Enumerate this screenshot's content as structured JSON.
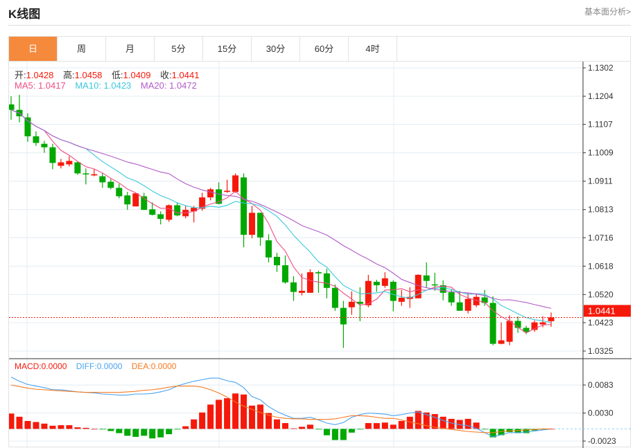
{
  "header": {
    "title": "K线图",
    "link": "基本面分析>"
  },
  "tabs": [
    "日",
    "周",
    "月",
    "5分",
    "15分",
    "30分",
    "60分",
    "4时"
  ],
  "active_tab": 0,
  "ohlc_legend": {
    "open_label": "开:",
    "open": "1.0428",
    "high_label": "高:",
    "high": "1.0458",
    "low_label": "低:",
    "low": "1.0409",
    "close_label": "收:",
    "close": "1.0441"
  },
  "ma_legend": {
    "ma5": "MA5: 1.0417",
    "ma10": "MA10: 1.0423",
    "ma20": "MA20: 1.0472"
  },
  "macd_legend": {
    "macd": "MACD:0.0000",
    "diff": "DIFF:0.0000",
    "dea": "DEA:0.0000"
  },
  "current_price": "1.0441",
  "colors": {
    "up": "#f5190b",
    "down": "#00a800",
    "ma5": "#ee4c84",
    "ma10": "#3cc8dc",
    "ma20": "#b15bc8",
    "diff": "#4aa3f0",
    "dea": "#f57a22",
    "accent": "#f58a3d"
  },
  "chart_data": {
    "type": "candlestick",
    "price_axis": {
      "ticks": [
        "1.1302",
        "1.1204",
        "1.1107",
        "1.1009",
        "1.0911",
        "1.0813",
        "1.0716",
        "1.0618",
        "1.0520",
        "1.0423",
        "1.0325"
      ],
      "range": [
        1.0325,
        1.1302
      ]
    },
    "macd_axis": {
      "ticks": [
        "0.0083",
        "0.0030",
        "-0.0023"
      ],
      "range": [
        -0.0023,
        0.0083
      ]
    },
    "candles": [
      [
        1.1176,
        1.1204,
        1.1123,
        1.1157
      ],
      [
        1.1157,
        1.1209,
        1.1114,
        1.1135
      ],
      [
        1.1131,
        1.1145,
        1.1047,
        1.1066
      ],
      [
        1.1066,
        1.1083,
        1.1033,
        1.1043
      ],
      [
        1.104,
        1.105,
        1.1009,
        1.1028
      ],
      [
        1.1028,
        1.104,
        1.0952,
        1.0974
      ],
      [
        1.0964,
        1.0988,
        1.0955,
        1.0976
      ],
      [
        1.0969,
        1.0997,
        1.0962,
        1.0981
      ],
      [
        1.0976,
        1.0978,
        1.0933,
        1.0938
      ],
      [
        1.0938,
        1.0955,
        1.09,
        1.0936
      ],
      [
        1.0931,
        1.0952,
        1.0928,
        1.0935
      ],
      [
        1.0928,
        1.094,
        1.0888,
        1.0907
      ],
      [
        1.0909,
        1.0919,
        1.0883,
        1.0888
      ],
      [
        1.0888,
        1.0902,
        1.0852,
        1.0859
      ],
      [
        1.0862,
        1.0874,
        1.0812,
        1.0831
      ],
      [
        1.0824,
        1.0871,
        1.0824,
        1.0869
      ],
      [
        1.0859,
        1.0871,
        1.0812,
        1.0812
      ],
      [
        1.0814,
        1.0838,
        1.0793,
        1.0795
      ],
      [
        1.0797,
        1.0807,
        1.0762,
        1.0781
      ],
      [
        1.0778,
        1.0831,
        1.0771,
        1.0828
      ],
      [
        1.0828,
        1.0838,
        1.079,
        1.0793
      ],
      [
        1.079,
        1.0826,
        1.0783,
        1.0812
      ],
      [
        1.0807,
        1.0826,
        1.0769,
        1.0819
      ],
      [
        1.0816,
        1.0871,
        1.0809,
        1.0855
      ],
      [
        1.0855,
        1.0888,
        1.0845,
        1.0883
      ],
      [
        1.0883,
        1.0907,
        1.0831,
        1.0833
      ],
      [
        1.0874,
        1.0916,
        1.0871,
        1.0878
      ],
      [
        1.0874,
        1.0938,
        1.0871,
        1.0931
      ],
      [
        1.0924,
        1.0938,
        1.0683,
        1.0726
      ],
      [
        1.0726,
        1.0826,
        1.0714,
        1.0802
      ],
      [
        1.0802,
        1.0802,
        1.0688,
        1.0717
      ],
      [
        1.0707,
        1.0728,
        1.0631,
        1.0648
      ],
      [
        1.065,
        1.0664,
        1.0598,
        1.0621
      ],
      [
        1.0621,
        1.0655,
        1.0557,
        1.0562
      ],
      [
        1.0562,
        1.0583,
        1.0498,
        1.0529
      ],
      [
        1.0526,
        1.0593,
        1.0517,
        1.0533
      ],
      [
        1.0526,
        1.0607,
        1.0526,
        1.0597
      ],
      [
        1.0597,
        1.0602,
        1.0526,
        1.0593
      ],
      [
        1.0593,
        1.0609,
        1.0507,
        1.0543
      ],
      [
        1.0543,
        1.0555,
        1.0464,
        1.0474
      ],
      [
        1.0474,
        1.0498,
        1.0336,
        1.0417
      ],
      [
        1.0476,
        1.0531,
        1.045,
        1.0495
      ],
      [
        1.0495,
        1.0545,
        1.0428,
        1.0488
      ],
      [
        1.0483,
        1.0588,
        1.0476,
        1.0567
      ],
      [
        1.0564,
        1.0571,
        1.0529,
        1.0552
      ],
      [
        1.055,
        1.0597,
        1.0543,
        1.0576
      ],
      [
        1.0564,
        1.0569,
        1.0462,
        1.0498
      ],
      [
        1.0495,
        1.0536,
        1.0481,
        1.0509
      ],
      [
        1.0505,
        1.0545,
        1.0474,
        1.0512
      ],
      [
        1.0507,
        1.059,
        1.0507,
        1.0588
      ],
      [
        1.0586,
        1.0631,
        1.0545,
        1.0567
      ],
      [
        1.0555,
        1.0595,
        1.0533,
        1.0552
      ],
      [
        1.0552,
        1.0569,
        1.05,
        1.0526
      ],
      [
        1.0528,
        1.054,
        1.0481,
        1.0493
      ],
      [
        1.0493,
        1.0533,
        1.0464,
        1.0464
      ],
      [
        1.0464,
        1.0526,
        1.0455,
        1.0505
      ],
      [
        1.0483,
        1.0524,
        1.0476,
        1.0512
      ],
      [
        1.051,
        1.0536,
        1.0481,
        1.0491
      ],
      [
        1.0491,
        1.0514,
        1.0345,
        1.035
      ],
      [
        1.035,
        1.0424,
        1.0348,
        1.0362
      ],
      [
        1.0357,
        1.0448,
        1.0345,
        1.0429
      ],
      [
        1.0429,
        1.0445,
        1.0388,
        1.0405
      ],
      [
        1.0405,
        1.0412,
        1.0383,
        1.0391
      ],
      [
        1.0398,
        1.0431,
        1.0391,
        1.0424
      ],
      [
        1.0417,
        1.0445,
        1.0407,
        1.0424
      ],
      [
        1.0428,
        1.0458,
        1.0409,
        1.0441
      ]
    ],
    "macd_hist": [
      0.0029,
      0.0023,
      0.0015,
      0.0013,
      0.001,
      0.0006,
      0.0007,
      0.0007,
      0.0003,
      0.0002,
      0.0,
      -0.0001,
      -0.0004,
      -0.0008,
      -0.0013,
      -0.0015,
      -0.0013,
      -0.0018,
      -0.0016,
      -0.001,
      -0.0001,
      0.0005,
      0.0018,
      0.0031,
      0.0046,
      0.0055,
      0.0058,
      0.0067,
      0.0065,
      0.0044,
      0.0046,
      0.003,
      0.0018,
      0.0011,
      0.0001,
      0.0004,
      0.0008,
      -0.0001,
      -0.0012,
      -0.0021,
      -0.0021,
      -0.0007,
      -0.0001,
      0.0011,
      0.0011,
      0.0012,
      0.0008,
      0.0015,
      0.0023,
      0.0034,
      0.0031,
      0.0028,
      0.0023,
      0.0019,
      0.0017,
      0.0019,
      0.0012,
      -0.0001,
      -0.0016,
      -0.0012,
      -0.0006,
      -0.0008,
      -0.0008,
      -0.0003,
      -0.0001,
      0.0
    ],
    "diff": [
      0.0098,
      0.009,
      0.0084,
      0.0081,
      0.0078,
      0.0074,
      0.0074,
      0.0072,
      0.007,
      0.0069,
      0.0068,
      0.0066,
      0.0065,
      0.0064,
      0.0064,
      0.0066,
      0.0066,
      0.0067,
      0.007,
      0.0074,
      0.0081,
      0.0086,
      0.009,
      0.0093,
      0.0096,
      0.0096,
      0.0091,
      0.0088,
      0.0078,
      0.0061,
      0.0055,
      0.0042,
      0.0033,
      0.0026,
      0.002,
      0.002,
      0.0022,
      0.0017,
      0.0011,
      0.0008,
      0.0012,
      0.0022,
      0.0027,
      0.003,
      0.0029,
      0.0028,
      0.0025,
      0.0027,
      0.003,
      0.0032,
      0.0027,
      0.0022,
      0.0016,
      0.0011,
      0.0008,
      0.0006,
      0.0001,
      -0.0007,
      -0.0015,
      -0.0011,
      -0.0007,
      -0.0007,
      -0.0006,
      -0.0004,
      -0.0002,
      0.0
    ],
    "dea": [
      0.0083,
      0.008,
      0.0077,
      0.0075,
      0.0074,
      0.0073,
      0.0072,
      0.0071,
      0.007,
      0.0069,
      0.0069,
      0.0069,
      0.0069,
      0.0069,
      0.007,
      0.0071,
      0.0073,
      0.0074,
      0.0076,
      0.0079,
      0.0081,
      0.0081,
      0.0081,
      0.0079,
      0.0074,
      0.0068,
      0.006,
      0.0051,
      0.0043,
      0.0037,
      0.0031,
      0.0026,
      0.0022,
      0.002,
      0.0019,
      0.0019,
      0.0018,
      0.0018,
      0.0018,
      0.0019,
      0.0022,
      0.0025,
      0.0025,
      0.0024,
      0.0022,
      0.002,
      0.002,
      0.0017,
      0.0013,
      0.001,
      0.0006,
      0.0003,
      0.0001,
      -0.0001,
      -0.0003,
      -0.0005,
      -0.0006,
      -0.0007,
      -0.0007,
      -0.0005,
      -0.0004,
      -0.0003,
      -0.0002,
      -0.0001,
      0.0,
      0.0
    ]
  }
}
